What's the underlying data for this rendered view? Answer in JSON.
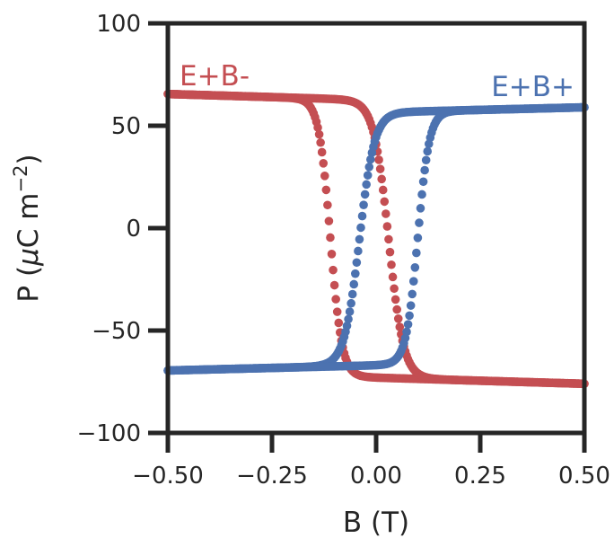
{
  "chart_data": {
    "type": "scatter",
    "title": "",
    "xlabel": "B (T)",
    "ylabel_main": "P (",
    "ylabel_mu": "μ",
    "ylabel_unit": "C m",
    "ylabel_sup": "−2",
    "ylabel_close": ")",
    "xlim": [
      -0.5,
      0.5
    ],
    "ylim": [
      -100,
      100
    ],
    "xticks": [
      -0.5,
      -0.25,
      0.0,
      0.25,
      0.5
    ],
    "xtick_labels": [
      "−0.50",
      "−0.25",
      "0.00",
      "0.25",
      "0.50"
    ],
    "yticks": [
      -100,
      -50,
      0,
      50,
      100
    ],
    "ytick_labels": [
      "−100",
      "−50",
      "0",
      "50",
      "100"
    ],
    "grid": false,
    "series": [
      {
        "name": "E+B-",
        "color": "#C44E52",
        "label_position": "top-left",
        "branches": [
          {
            "Ps": 62.5,
            "slope": -6,
            "Pr": -73,
            "Bc": -0.11,
            "w": 0.028
          },
          {
            "Ps": 62.5,
            "slope": -6,
            "Pr": -73,
            "Bc": 0.03,
            "w": 0.036
          }
        ]
      },
      {
        "name": "E+B+",
        "color": "#4C72B0",
        "label_position": "top-right",
        "branches": [
          {
            "Ps": -67,
            "slope": 5,
            "Pr": 56.5,
            "Bc": -0.04,
            "w": 0.036
          },
          {
            "Ps": -67,
            "slope": 5,
            "Pr": 56.5,
            "Bc": 0.1,
            "w": 0.028
          }
        ]
      }
    ]
  }
}
